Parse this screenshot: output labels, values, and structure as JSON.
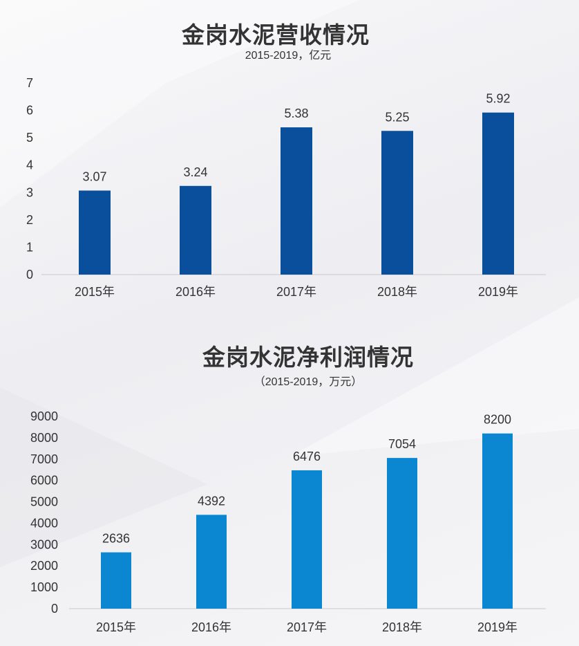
{
  "chart_data": [
    {
      "type": "bar",
      "title": "金岗水泥营收情况",
      "subtitle": "2015-2019，亿元",
      "categories": [
        "2015年",
        "2016年",
        "2017年",
        "2018年",
        "2019年"
      ],
      "values": [
        3.07,
        3.24,
        5.38,
        5.25,
        5.92
      ],
      "value_labels": [
        "3.07",
        "3.24",
        "5.38",
        "5.25",
        "5.92"
      ],
      "ylim": [
        0,
        7
      ],
      "yticks": [
        "0",
        "1",
        "2",
        "3",
        "4",
        "5",
        "6",
        "7"
      ],
      "bar_color": "#0a4f9c",
      "grid": false
    },
    {
      "type": "bar",
      "title": "金岗水泥净利润情况",
      "subtitle": "（2015-2019，万元）",
      "categories": [
        "2015年",
        "2016年",
        "2017年",
        "2018年",
        "2019年"
      ],
      "values": [
        2636,
        4392,
        6476,
        7054,
        8200
      ],
      "value_labels": [
        "2636",
        "4392",
        "6476",
        "7054",
        "8200"
      ],
      "ylim": [
        0,
        9000
      ],
      "yticks": [
        "0",
        "1000",
        "2000",
        "3000",
        "4000",
        "5000",
        "6000",
        "7000",
        "8000",
        "9000"
      ],
      "bar_color": "#0b86d1",
      "grid": false
    }
  ]
}
